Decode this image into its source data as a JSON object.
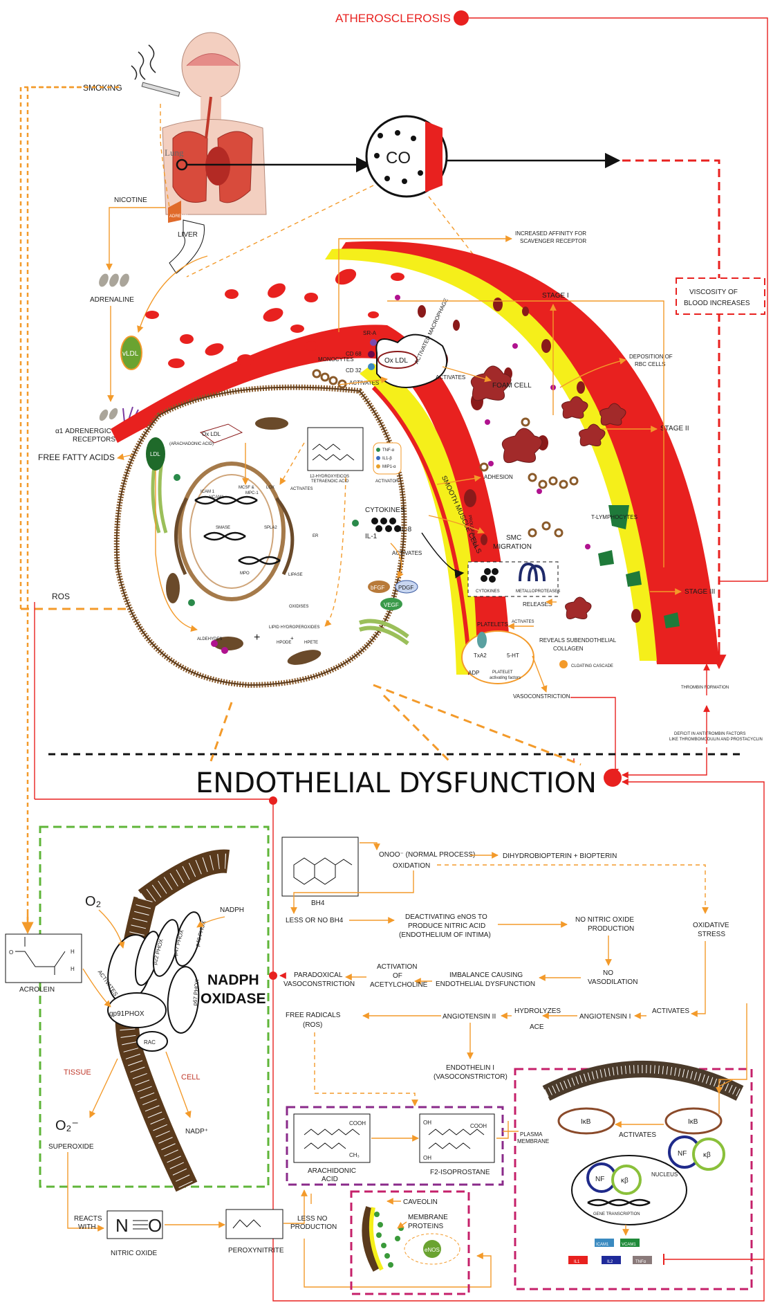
{
  "title": {
    "atherosclerosis": "ATHEROSCLEROSIS",
    "endothelial_dysfunction": "ENDOTHELIAL DYSFUNCTION"
  },
  "top": {
    "smoking": "SMOKING",
    "lung": "Lung",
    "co": "CO",
    "nicotine": "NICOTINE",
    "adrenal": "ADRENAL",
    "liver": "LIVER",
    "adrenaline": "ADRENALINE",
    "vldl": "vLDL",
    "ldl": "LDL",
    "alpha_receptors": [
      "α1 ADRENERGIC",
      "RECEPTORS"
    ],
    "free_fatty_acids": "FREE FATTY ACIDS",
    "ros": "ROS",
    "increased_affinity": [
      "INCREASED AFFINITY FOR",
      "SCAVENGER RECEPTOR"
    ],
    "viscosity": [
      "VISCOSITY  OF",
      "BLOOD INCREASES"
    ],
    "stage1": "STAGE I",
    "stage2": "STAGE II",
    "stage3": "STAGE III",
    "deposition": [
      "DEPOSITION OF",
      "RBC CELLS"
    ]
  },
  "cell": {
    "sr_a": "SR-A",
    "cd68": "CD 68",
    "cd32": "CD 32",
    "ox_ldl": "Ox LDL",
    "activated_macrophage": "ACTIVATED MACROPHAGE",
    "activates": "ACTIVATES",
    "monocytes": "MONOCYTES",
    "foam_cell": "FOAM CELL",
    "adhesion": "ADHESION",
    "arachadonic": "(ARACHADONIC ACID)",
    "ox_ldl2": "Ox LDL",
    "hete": [
      "12-HYDROXYEICOS",
      "TETRAENOIC ACID"
    ],
    "tnf": "TNF-α",
    "il1b": "IL1-β",
    "mip": "MIP1-α",
    "activator": "ACTIVATOR",
    "icam": "ICAM 1",
    "vcam": "VCAM1",
    "mcsf": "MCSF &",
    "mpc": "MPC-1",
    "lox": "LOX",
    "smase": "SMASE",
    "spla2": "SPLA2",
    "mpo": "MPO",
    "lipase": "LIPASE",
    "er": "ER",
    "oxidises": "OXIDISES",
    "lipid_hydro": "LIPID HYDROPEROXIDES",
    "hpode": "HPODE",
    "hpete": "HPETE",
    "aldehydes": "ALDEHYDES",
    "smooth_muscle": "SMOOTH MUSCLE CELLS",
    "proliferation": "PROLIFERATION",
    "cytokines": "CYTOKINES",
    "il1": "IL-1",
    "il8": "IL-8",
    "bfgf": "bFGF",
    "pdgf": "PDGF",
    "vegf": "VEGF",
    "smc_migration": [
      "SMC",
      "MIGRATION"
    ],
    "cytokines2": "CYTOKINES",
    "metallo": "METALLOPROTEASES",
    "releases": "RELEASES",
    "platelets": "PLATELETS",
    "activates2": "ACTIVATES",
    "txa2": "TxA2",
    "ht5": "5-HT",
    "adp": "ADP",
    "platelet_factors": [
      "PLATELET",
      "activating factors"
    ],
    "reveals": [
      "REVEALS SUBENDOTHELIAL",
      "COLLAGEN"
    ],
    "clotting": "CLOATING CASCADE",
    "vasoconstriction": "VASOCONSTRICTION",
    "t_lymph": "T-LYMPHOCYTES",
    "thrombin": "THROMBIN FORMATION",
    "deficit": [
      "DEFICIT IN ANTITROMBIN FACTORS",
      "LIKE THROMBOMODULIN AND PROSTACYCLIN"
    ]
  },
  "bottom": {
    "o2": "O₂",
    "nadph": "NADPH",
    "nadph_oxidase": [
      "NADPH",
      "OXIDASE"
    ],
    "p22": "p22 PHOX",
    "p47": "p47 PHOX",
    "p40": "p40 PHOX",
    "p67": "p67 PHOX",
    "gp91": "gp91PHOX",
    "rac": "RAC",
    "tissue": "TISSUE",
    "cell": "CELL",
    "superoxide_sym": "O₂⁻",
    "superoxide": "SUPEROXIDE",
    "nadp": "NADP⁺",
    "acrolein": "ACROLEIN",
    "activates": "ACTIVATES",
    "reacts_with": [
      "REACTS",
      "WITH"
    ],
    "nitric_oxide": "NITRIC OXIDE",
    "peroxynitrite": "PEROXYNITRITE",
    "less_no": [
      "LESS NO",
      "PRODUCTION"
    ],
    "bh4": "BH4",
    "onoo": "ONOO⁻ (NORMAL PROCESS)",
    "oxidation": "OXIDATION",
    "dihydro": "DIHYDROBIOPTERIN  +  BIOPTERIN",
    "less_bh4": "LESS OR NO BH4",
    "deactivating": [
      "DEACTIVATING eNOS TO",
      "PRODUCE NITRIC ACID",
      "(ENDOTHELIUM OF INTIMA)"
    ],
    "no_nitric": [
      "NO NITRIC OXIDE",
      "PRODUCTION"
    ],
    "oxidative": [
      "OXIDATIVE",
      "STRESS"
    ],
    "paradoxical": [
      "PARADOXICAL",
      "VASOCONSTRICTION"
    ],
    "activation_ach": [
      "ACTIVATION",
      "OF",
      "ACETYLCHOLINE"
    ],
    "imbalance": [
      "IMBALANCE CAUSING",
      "ENDOTHELIAL DYSFUNCTION"
    ],
    "no_vaso": [
      "NO",
      "VASODILATION"
    ],
    "free_radicals": [
      "FREE RADICALS",
      "(ROS)"
    ],
    "angiotensin2": "ANGIOTENSIN II",
    "hydrolyzes": "HYDROLYZES",
    "ace": "ACE",
    "angiotensin1": "ANGIOTENSIN I",
    "activates2": "ACTIVATES",
    "endothelin": [
      "ENDOTHELIN I",
      "(VASOCONSTRICTOR)"
    ],
    "arachidonic": [
      "ARACHIDONIC",
      "ACID"
    ],
    "f2": "F2-ISOPROSTANE",
    "caveolin": "CAVEOLIN",
    "membrane_proteins": [
      "MEMBRANE",
      "PROTEINS"
    ],
    "enos": "eNOS",
    "ikb1": "IκB",
    "ikb2": "IκB",
    "activates3": "ACTIVATES",
    "plasma": [
      "PLASMA",
      "MEMBRANE"
    ],
    "nf": "NF",
    "kb": "κβ",
    "nf2": "NF",
    "kb2": "κβ",
    "nucleus": "NUCLEUS",
    "gene_trans": "GENE TRANSCRIPTION",
    "icam1": "ICAM1",
    "vcam1": "VCAM1",
    "il1": "IL1",
    "il2": "IL2",
    "tnfa": "TNFα",
    "cooh": "COOH",
    "ch3": "CH₃",
    "oh": "OH"
  },
  "colors": {
    "red": "#e8211f",
    "orange": "#f39a2a",
    "yellow": "#f5ef1a",
    "green_box": "#5fb538",
    "magenta_box": "#c5206a",
    "brown": "#5a3a1c"
  }
}
